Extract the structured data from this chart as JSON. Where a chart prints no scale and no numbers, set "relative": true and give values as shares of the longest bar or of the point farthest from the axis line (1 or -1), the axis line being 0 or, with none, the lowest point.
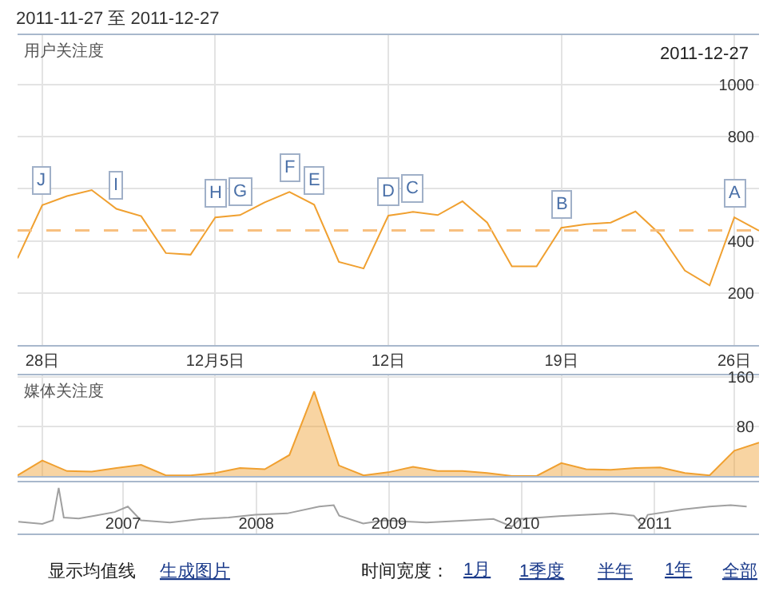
{
  "chart_data": [
    {
      "type": "line",
      "title": "2011-11-27 至 2011-12-27",
      "ylabel": "用户关注度",
      "color": "#f0a030",
      "x": [
        "2011-11-27",
        "2011-11-28",
        "2011-11-29",
        "2011-11-30",
        "2011-12-01",
        "2011-12-02",
        "2011-12-03",
        "2011-12-04",
        "2011-12-05",
        "2011-12-06",
        "2011-12-07",
        "2011-12-08",
        "2011-12-09",
        "2011-12-10",
        "2011-12-11",
        "2011-12-12",
        "2011-12-13",
        "2011-12-14",
        "2011-12-15",
        "2011-12-16",
        "2011-12-17",
        "2011-12-18",
        "2011-12-19",
        "2011-12-20",
        "2011-12-21",
        "2011-12-22",
        "2011-12-23",
        "2011-12-24",
        "2011-12-25",
        "2011-12-26",
        "2011-12-27"
      ],
      "values": [
        333,
        537,
        572,
        595,
        523,
        495,
        353,
        347,
        490,
        499,
        548,
        588,
        539,
        319,
        294,
        497,
        511,
        499,
        552,
        470,
        302,
        302,
        450,
        464,
        470,
        513,
        425,
        286,
        229,
        490,
        439
      ],
      "xlim": [
        "2011-11-27",
        "2011-12-27"
      ],
      "xticks": [
        {
          "value": "2011-11-28",
          "label": "28日"
        },
        {
          "value": "2011-12-05",
          "label": "12月5日"
        },
        {
          "value": "2011-12-12",
          "label": "12日"
        },
        {
          "value": "2011-12-19",
          "label": "19日"
        },
        {
          "value": "2011-12-26",
          "label": "26日"
        }
      ],
      "ylim": [
        0,
        1190
      ],
      "yticks": [
        200,
        400,
        {
          "value": 600,
          "label": null
        },
        800,
        1000
      ],
      "grid": true,
      "ref_lines": [
        {
          "axis": "y",
          "value": 440,
          "color": "#f8c080",
          "line_style": "dashed"
        }
      ],
      "annotations": [
        {
          "text": "J",
          "x": "2011-11-28",
          "y": 537
        },
        {
          "text": "I",
          "x": "2011-12-01",
          "y": 523
        },
        {
          "text": "H",
          "x": "2011-12-05",
          "y": 490
        },
        {
          "text": "G",
          "x": "2011-12-06",
          "y": 499
        },
        {
          "text": "F",
          "x": "2011-12-08",
          "y": 588
        },
        {
          "text": "E",
          "x": "2011-12-09",
          "y": 539
        },
        {
          "text": "D",
          "x": "2011-12-12",
          "y": 497
        },
        {
          "text": "C",
          "x": "2011-12-13",
          "y": 511
        },
        {
          "text": "B",
          "x": "2011-12-19",
          "y": 450
        },
        {
          "text": "A",
          "x": "2011-12-26",
          "y": 490
        },
        "2011-12-27"
      ]
    },
    {
      "type": "area",
      "ylabel": "媒体关注度",
      "color": "#f0a030",
      "x": [
        "2011-11-27",
        "2011-11-28",
        "2011-11-29",
        "2011-11-30",
        "2011-12-01",
        "2011-12-02",
        "2011-12-03",
        "2011-12-04",
        "2011-12-05",
        "2011-12-06",
        "2011-12-07",
        "2011-12-08",
        "2011-12-09",
        "2011-12-10",
        "2011-12-11",
        "2011-12-12",
        "2011-12-13",
        "2011-12-14",
        "2011-12-15",
        "2011-12-16",
        "2011-12-17",
        "2011-12-18",
        "2011-12-19",
        "2011-12-20",
        "2011-12-21",
        "2011-12-22",
        "2011-12-23",
        "2011-12-24",
        "2011-12-25",
        "2011-12-26",
        "2011-12-27"
      ],
      "values": [
        1,
        25,
        8,
        7,
        13,
        18,
        1,
        1,
        5,
        13,
        11,
        34,
        137,
        17,
        1,
        6,
        15,
        8,
        8,
        5,
        0,
        0,
        21,
        11,
        10,
        13,
        14,
        5,
        1,
        41,
        54
      ],
      "xlim": [
        "2011-11-27",
        "2011-12-27"
      ],
      "xticks": [
        {
          "value": "2011-11-28",
          "label": null
        },
        {
          "value": "2011-12-05",
          "label": null
        },
        {
          "value": "2011-12-12",
          "label": null
        },
        {
          "value": "2011-12-19",
          "label": null
        },
        {
          "value": "2011-12-26",
          "label": null
        }
      ],
      "ylim": [
        0,
        163
      ],
      "yticks": [
        80,
        160
      ],
      "grid": true,
      "tick_labels": "y"
    },
    {
      "type": "line",
      "relative": true,
      "color": "#a0a0a0",
      "x": [
        "2006-06-05",
        "2006-08-10",
        "2006-09-08",
        "2006-09-24",
        "2006-10-08",
        "2006-11-18",
        "2007-01-01",
        "2007-02-25",
        "2007-04-02",
        "2007-05-08",
        "2007-07-27",
        "2007-10-22",
        "2008-01-04",
        "2008-03-17",
        "2008-06-13",
        "2008-09-09",
        "2008-10-19",
        "2008-11-03",
        "2009-01-08",
        "2009-03-07",
        "2009-07-01",
        "2009-10-26",
        "2010-01-01",
        "2010-02-21",
        "2010-03-15",
        "2010-07-01",
        "2010-11-24",
        "2011-01-22",
        "2011-02-14",
        "2011-03-01",
        "2011-06-07",
        "2011-08-18",
        "2011-10-15",
        "2011-11-28"
      ],
      "values": [
        0.26,
        0.21,
        0.29,
        1,
        0.35,
        0.33,
        0.39,
        0.47,
        0.59,
        0.29,
        0.24,
        0.32,
        0.35,
        0.41,
        0.44,
        0.59,
        0.62,
        0.39,
        0.22,
        0.29,
        0.24,
        0.29,
        0.32,
        0.15,
        0.32,
        0.38,
        0.44,
        0.39,
        0.18,
        0.41,
        0.53,
        0.59,
        0.62,
        0.59
      ],
      "xlim": [
        "2006-06-03",
        "2012-01-01"
      ],
      "xticks": [
        {
          "value": "2007-03-20",
          "label": "2007"
        },
        {
          "value": "2008-03-20",
          "label": "2008"
        },
        {
          "value": "2009-03-20",
          "label": "2009"
        },
        {
          "value": "2010-03-20",
          "label": "2010"
        },
        {
          "value": "2011-03-20",
          "label": "2011"
        }
      ],
      "grid": "x",
      "tick_labels": "x",
      "annotations": [
        "显示均值线",
        "生成图片",
        "时间宽度：",
        "1月",
        "1季度",
        "半年",
        "1年",
        "全部"
      ]
    }
  ]
}
